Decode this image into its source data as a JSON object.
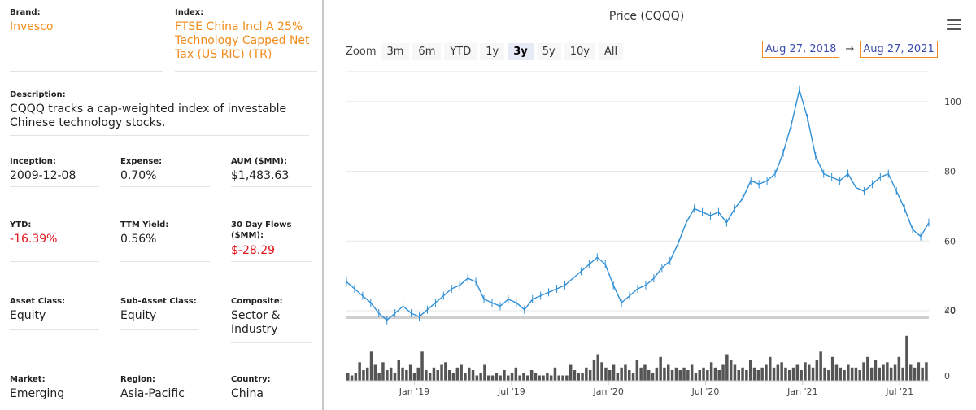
{
  "fund": {
    "brand": {
      "label": "Brand:",
      "value": "Invesco"
    },
    "index": {
      "label": "Index:",
      "line1": "FTSE China Incl A 25%",
      "line2": "Technology Capped Net",
      "line3": "Tax (US RIC) (TR)"
    },
    "description": {
      "label": "Description:",
      "line1": "CQQQ tracks a cap-weighted index of investable",
      "line2": "Chinese technology stocks."
    },
    "inception": {
      "label": "Inception:",
      "value": "2009-12-08"
    },
    "expense": {
      "label": "Expense:",
      "value": "0.70%"
    },
    "aum": {
      "label": "AUM ($MM):",
      "value": "$1,483.63"
    },
    "ytd": {
      "label": "YTD:",
      "value": "-16.39%"
    },
    "ttm_yield": {
      "label": "TTM Yield:",
      "value": "0.56%"
    },
    "flows": {
      "label1": "30 Day Flows",
      "label2": "($MM):",
      "value": "$-28.29"
    },
    "asset_class": {
      "label": "Asset Class:",
      "value": "Equity"
    },
    "sub_asset_class": {
      "label": "Sub-Asset Class:",
      "value": "Equity"
    },
    "composite": {
      "label": "Composite:",
      "line1": "Sector &",
      "line2": "Industry"
    },
    "market": {
      "label": "Market:",
      "value": "Emerging"
    },
    "region": {
      "label": "Region:",
      "value": "Asia-Pacific"
    },
    "country": {
      "label": "Country:",
      "value": "China"
    }
  },
  "zoom": {
    "label": "Zoom",
    "buttons": [
      "3m",
      "6m",
      "YTD",
      "1y",
      "3y",
      "5y",
      "10y",
      "All"
    ],
    "active": "3y"
  },
  "range": {
    "from": "Aug 27, 2018",
    "arrow": "→",
    "to": "Aug 27, 2021"
  },
  "colors": {
    "accent": "#f28c1c",
    "negative": "#e0151b",
    "price_line": "#2f8fd6",
    "volume_bar": "#555555",
    "date_text": "#3b4cb0"
  },
  "chart_data": {
    "type": "line",
    "title": "Price (CQQQ)",
    "price_axis": {
      "ylim": [
        40,
        110
      ],
      "ticks": [
        40,
        60,
        80,
        100
      ]
    },
    "volume_axis": {
      "ticks": [
        0,
        20
      ]
    },
    "x_ticks": [
      "Jan '19",
      "Jul '19",
      "Jan '20",
      "Jul '20",
      "Jan '21",
      "Jul '21"
    ],
    "x_tick_months": [
      4.2,
      10.2,
      16.2,
      22.2,
      28.2,
      34.2
    ],
    "price_series": {
      "name": "CQQQ",
      "x_months": [
        0.0,
        0.5,
        1.0,
        1.5,
        2.0,
        2.5,
        3.0,
        3.5,
        4.0,
        4.5,
        5.0,
        5.5,
        6.0,
        6.5,
        7.0,
        7.5,
        8.0,
        8.5,
        9.0,
        9.5,
        10.0,
        10.5,
        11.0,
        11.5,
        12.0,
        12.5,
        13.0,
        13.5,
        14.0,
        14.5,
        15.0,
        15.5,
        16.0,
        16.5,
        17.0,
        17.5,
        18.0,
        18.5,
        19.0,
        19.5,
        20.0,
        20.5,
        21.0,
        21.5,
        22.0,
        22.5,
        23.0,
        23.5,
        24.0,
        24.5,
        25.0,
        25.5,
        26.0,
        26.5,
        27.0,
        27.5,
        28.0,
        28.5,
        29.0,
        29.5,
        30.0,
        30.5,
        31.0,
        31.5,
        32.0,
        32.5,
        33.0,
        33.5,
        34.0,
        34.5,
        35.0,
        35.5,
        36.0
      ],
      "values": [
        49,
        47,
        45,
        43,
        40,
        38,
        40,
        42,
        40,
        39,
        41,
        43,
        45,
        47,
        48,
        50,
        49,
        44,
        43,
        42,
        44,
        43,
        41,
        44,
        45,
        46,
        47,
        48,
        50,
        52,
        54,
        56,
        54,
        48,
        43,
        45,
        47,
        48,
        50,
        53,
        55,
        60,
        66,
        70,
        69,
        68,
        69,
        66,
        70,
        73,
        78,
        77,
        78,
        80,
        86,
        94,
        104,
        96,
        85,
        80,
        79,
        78,
        80,
        76,
        75,
        77,
        79,
        80,
        75,
        70,
        64,
        62,
        66
      ]
    },
    "volume_series": {
      "name": "Volume",
      "values": [
        3,
        2,
        3,
        7,
        4,
        5,
        11,
        6,
        3,
        7,
        4,
        5,
        3,
        8,
        5,
        4,
        6,
        3,
        5,
        11,
        4,
        3,
        5,
        4,
        6,
        7,
        4,
        3,
        5,
        6,
        3,
        5,
        4,
        2,
        3,
        6,
        2,
        2,
        3,
        2,
        4,
        2,
        3,
        5,
        2,
        3,
        2,
        4,
        3,
        2,
        2,
        3,
        2,
        5,
        2,
        2,
        2,
        6,
        4,
        3,
        3,
        5,
        4,
        8,
        10,
        7,
        5,
        4,
        6,
        3,
        5,
        6,
        4,
        3,
        8,
        5,
        6,
        4,
        3,
        5,
        9,
        5,
        6,
        4,
        5,
        4,
        5,
        4,
        6,
        3,
        4,
        5,
        4,
        7,
        5,
        4,
        6,
        10,
        8,
        6,
        4,
        5,
        4,
        8,
        5,
        4,
        5,
        6,
        9,
        5,
        6,
        7,
        5,
        4,
        5,
        6,
        4,
        7,
        6,
        5,
        8,
        11,
        5,
        4,
        9,
        6,
        5,
        4,
        6,
        5,
        5,
        4,
        7,
        9,
        5,
        8,
        5,
        6,
        7,
        5,
        6,
        9,
        5,
        17,
        6,
        5,
        7,
        5,
        7
      ]
    }
  }
}
